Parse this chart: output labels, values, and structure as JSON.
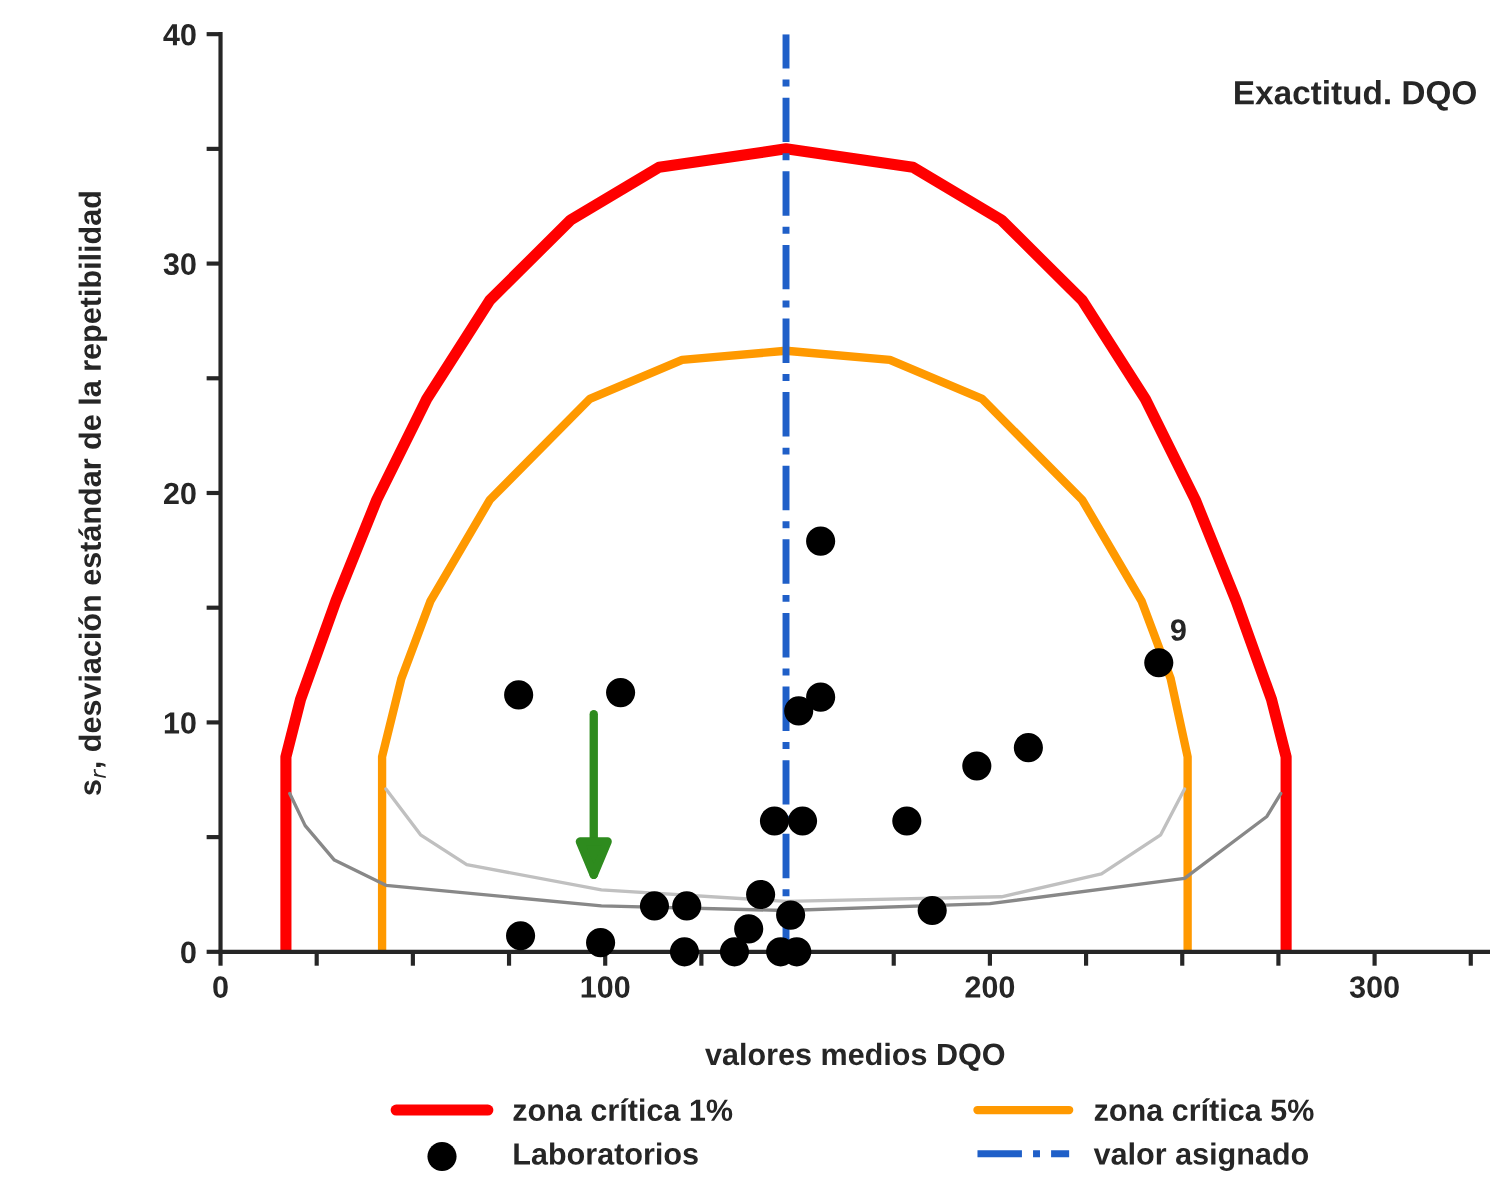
{
  "chart_data": {
    "type": "scatter",
    "title": "Exactitud. DQO",
    "xlabel": "valores medios DQO",
    "ylabel": "s$_{r}$, desviación estándar de la repetibilidad",
    "xlim": [
      0,
      330
    ],
    "xticks": [
      0,
      {
        "value": 25,
        "label": null
      },
      {
        "value": 50,
        "label": null
      },
      {
        "value": 75,
        "label": null
      },
      100,
      {
        "value": 125,
        "label": null
      },
      {
        "value": 150,
        "label": null
      },
      {
        "value": 175,
        "label": null
      },
      200,
      {
        "value": 225,
        "label": null
      },
      {
        "value": 250,
        "label": null
      },
      {
        "value": 275,
        "label": null
      },
      300,
      {
        "value": 325,
        "label": null
      }
    ],
    "ylim": [
      0,
      40
    ],
    "yticks": [
      0,
      {
        "value": 5,
        "label": null
      },
      10,
      {
        "value": 15,
        "label": null
      },
      20,
      {
        "value": 25,
        "label": null
      },
      30,
      {
        "value": 35,
        "label": null
      },
      40
    ],
    "grid": false,
    "legend": "bottom",
    "series": [
      {
        "name": "zona crítica 1%",
        "type": "line",
        "color": "#ff0000",
        "line_style": "solid",
        "marker": "none",
        "x": [
          17,
          17,
          20.8,
          30,
          40.6,
          53.6,
          70,
          91,
          114,
          147,
          180,
          203,
          224,
          240.4,
          253.4,
          264,
          273.2,
          277,
          277
        ],
        "values": [
          0,
          8.5,
          11,
          15.3,
          19.7,
          24.1,
          28.4,
          31.9,
          34.2,
          35,
          34.2,
          31.9,
          28.4,
          24.1,
          19.7,
          15.3,
          11,
          8.5,
          0
        ]
      },
      {
        "name": "zona crítica 5%",
        "type": "line",
        "color": "#ff9900",
        "line_style": "solid",
        "marker": "none",
        "x": [
          42,
          42,
          47,
          54.6,
          70,
          96,
          120,
          147,
          174,
          198,
          224,
          239.4,
          247,
          251.4,
          251.4
        ],
        "values": [
          0,
          8.5,
          11.9,
          15.3,
          19.7,
          24.1,
          25.8,
          26.2,
          25.8,
          24.1,
          19.7,
          15.3,
          11.9,
          8.5,
          0
        ]
      },
      {
        "type": "line",
        "color": "#888888",
        "line_style": "solid",
        "marker": "none",
        "x": [
          18,
          22,
          29.6,
          43,
          99,
          147,
          200,
          250.6,
          272,
          275.6
        ],
        "values": [
          6.9,
          5.5,
          4.0,
          2.9,
          2.0,
          1.8,
          2.1,
          3.2,
          5.9,
          6.9
        ]
      },
      {
        "type": "line",
        "color": "#c0c0c0",
        "line_style": "solid",
        "marker": "none",
        "x": [
          43,
          52,
          64,
          99,
          147,
          203,
          229,
          244.4,
          250.6
        ],
        "values": [
          7.1,
          5.1,
          3.8,
          2.7,
          2.2,
          2.4,
          3.4,
          5.1,
          7.1
        ]
      },
      {
        "name": "Laboratorios",
        "color": "#000000",
        "marker": "circle",
        "x": [
          77.5,
          104,
          156,
          150.3,
          156,
          144,
          151.3,
          178.4,
          196.6,
          210,
          243.9,
          185,
          78,
          98.8,
          112.8,
          121.2,
          120.6,
          133.6,
          137.3,
          140.4,
          148.2,
          145.6,
          149.8
        ],
        "values": [
          11.2,
          11.3,
          17.9,
          10.5,
          11.1,
          5.7,
          5.7,
          5.7,
          8.1,
          8.9,
          12.6,
          1.8,
          0.7,
          0.4,
          2.0,
          2.0,
          0,
          0,
          1.0,
          2.5,
          1.6,
          0,
          0
        ]
      }
    ],
    "ref_lines": [
      {
        "axis": "x",
        "value": 147,
        "label": "valor asignado",
        "color": "#1f5fc8",
        "line_style": "dashdot"
      }
    ],
    "annotations": [
      {
        "text": "9",
        "x": 243.9,
        "y": 12.6
      }
    ]
  }
}
